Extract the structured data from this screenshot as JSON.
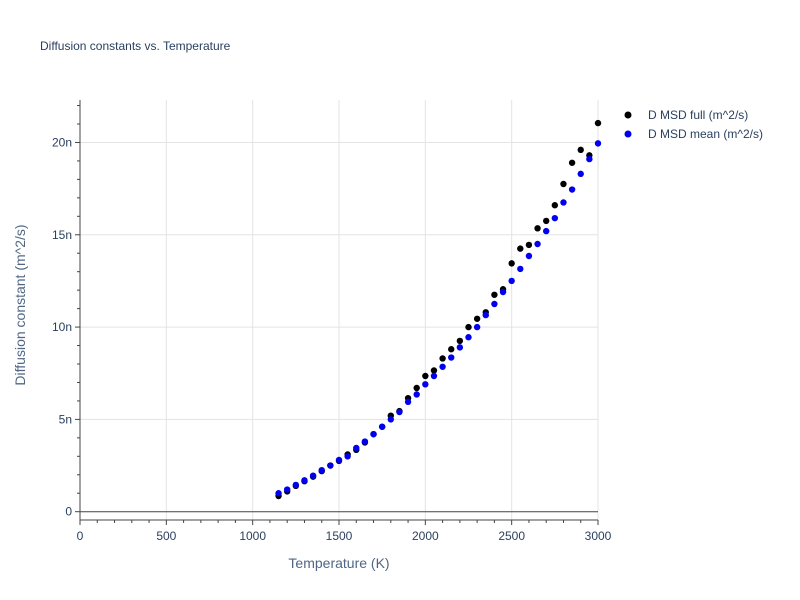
{
  "chart_data": {
    "type": "scatter",
    "title": "Diffusion constants vs. Temperature",
    "xlabel": "Temperature (K)",
    "ylabel": "Diffusion constant (m^2/s)",
    "xlim": [
      0,
      3000
    ],
    "ylim": [
      -0.45,
      22.3
    ],
    "y_unit_suffix": "n",
    "x_ticks": [
      0,
      500,
      1000,
      1500,
      2000,
      2500,
      3000
    ],
    "x_tick_labels": [
      "0",
      "500",
      "1000",
      "1500",
      "2000",
      "2500",
      "3000"
    ],
    "y_ticks": [
      0,
      5,
      10,
      15,
      20
    ],
    "y_tick_labels": [
      "0",
      "5n",
      "10n",
      "15n",
      "20n"
    ],
    "grid": true,
    "legend_position": "top-right",
    "series": [
      {
        "name": "D MSD full (m^2/s)",
        "color": "#000000",
        "x": [
          1150,
          1200,
          1250,
          1300,
          1350,
          1400,
          1450,
          1500,
          1550,
          1600,
          1650,
          1700,
          1750,
          1800,
          1850,
          1900,
          1950,
          2000,
          2050,
          2100,
          2150,
          2200,
          2250,
          2300,
          2350,
          2400,
          2450,
          2500,
          2550,
          2600,
          2650,
          2700,
          2750,
          2800,
          2850,
          2900,
          2950,
          3000
        ],
        "y": [
          0.85,
          1.1,
          1.4,
          1.65,
          1.9,
          2.2,
          2.5,
          2.75,
          3.1,
          3.35,
          3.75,
          4.2,
          4.6,
          5.2,
          5.45,
          6.15,
          6.7,
          7.35,
          7.65,
          8.3,
          8.8,
          9.25,
          10.0,
          10.45,
          10.8,
          11.75,
          12.05,
          13.45,
          14.25,
          14.45,
          15.35,
          15.75,
          16.6,
          17.75,
          18.9,
          19.6,
          19.3,
          21.05
        ]
      },
      {
        "name": "D MSD mean (m^2/s)",
        "color": "#0000ee",
        "x": [
          1150,
          1200,
          1250,
          1300,
          1350,
          1400,
          1450,
          1500,
          1550,
          1600,
          1650,
          1700,
          1750,
          1800,
          1850,
          1900,
          1950,
          2000,
          2050,
          2100,
          2150,
          2200,
          2250,
          2300,
          2350,
          2400,
          2450,
          2500,
          2550,
          2600,
          2650,
          2700,
          2750,
          2800,
          2850,
          2900,
          2950,
          3000
        ],
        "y": [
          1.0,
          1.2,
          1.45,
          1.7,
          1.95,
          2.25,
          2.5,
          2.8,
          3.0,
          3.45,
          3.8,
          4.2,
          4.6,
          5.0,
          5.4,
          5.95,
          6.35,
          6.9,
          7.35,
          7.85,
          8.35,
          8.9,
          9.45,
          10.0,
          10.65,
          11.25,
          11.9,
          12.5,
          13.15,
          13.85,
          14.5,
          15.2,
          15.9,
          16.75,
          17.45,
          18.3,
          19.1,
          19.95
        ]
      }
    ]
  }
}
